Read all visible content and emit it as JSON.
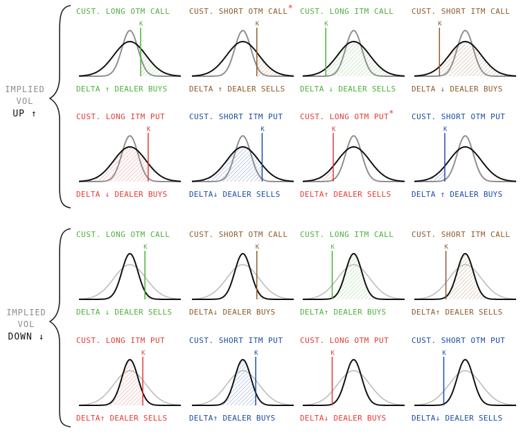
{
  "colors": {
    "call_long": "#4caf3a",
    "call_short": "#8d5a2b",
    "put_long": "#e53935",
    "put_short": "#1d4aa8",
    "asterisk": "#e53935"
  },
  "sections": [
    {
      "label": [
        "IMPLIED",
        "VOL",
        "UP ↑"
      ],
      "mode": "up",
      "panels": [
        {
          "title": "CUST. LONG OTM CALL",
          "caption": "DELTA ↑  DEALER BUYS",
          "color_key": "call_long",
          "strike_x": 0.6,
          "shade": "right",
          "star": ""
        },
        {
          "title": "CUST. SHORT OTM CALL",
          "caption": "DELTA ↑  DEALER SELLS",
          "color_key": "call_short",
          "strike_x": 0.63,
          "shade": "right",
          "star": "*"
        },
        {
          "title": "CUST. LONG ITM CALL",
          "caption": "DELTA ↓  DEALER SELLS",
          "color_key": "call_long",
          "strike_x": 0.24,
          "shade": "right",
          "star": ""
        },
        {
          "title": "CUST. SHORT ITM CALL",
          "caption": "DELTA ↓  DEALER BUYS",
          "color_key": "call_short",
          "strike_x": 0.26,
          "shade": "right",
          "star": ""
        },
        {
          "title": "CUST. LONG ITM PUT",
          "caption": "DELTA ↓  DEALER BUYS",
          "color_key": "put_long",
          "strike_x": 0.67,
          "shade": "left",
          "star": ""
        },
        {
          "title": "CUST. SHORT ITM PUT",
          "caption": "DELTA↓  DEALER SELLS",
          "color_key": "put_short",
          "strike_x": 0.68,
          "shade": "left",
          "star": ""
        },
        {
          "title": "CUST. LONG OTM PUT",
          "caption": "DELTA↑  DEALER SELLS",
          "color_key": "put_long",
          "strike_x": 0.31,
          "shade": "left",
          "star": "*"
        },
        {
          "title": "CUST. SHORT OTM PUT",
          "caption": "DELTA ↑  DEALER BUYS",
          "color_key": "put_short",
          "strike_x": 0.31,
          "shade": "left",
          "star": ""
        }
      ]
    },
    {
      "label": [
        "IMPLIED",
        "VOL",
        "DOWN ↓"
      ],
      "mode": "down",
      "panels": [
        {
          "title": "CUST. LONG OTM CALL",
          "caption": "DELTA ↓  DEALER SELLS",
          "color_key": "call_long",
          "strike_x": 0.64,
          "shade": "right",
          "star": ""
        },
        {
          "title": "CUST. SHORT OTM CALL",
          "caption": "DELTA↓  DEALER BUYS",
          "color_key": "call_short",
          "strike_x": 0.63,
          "shade": "right",
          "star": ""
        },
        {
          "title": "CUST. LONG ITM CALL",
          "caption": "DELTA↑  DEALER BUYS",
          "color_key": "call_long",
          "strike_x": 0.3,
          "shade": "right",
          "star": ""
        },
        {
          "title": "CUST. SHORT ITM CALL",
          "caption": "DELTA↑  DEALER SELLS",
          "color_key": "call_short",
          "strike_x": 0.32,
          "shade": "right",
          "star": ""
        },
        {
          "title": "CUST. LONG ITM PUT",
          "caption": "DELTA↑  DEALER SELLS",
          "color_key": "put_long",
          "strike_x": 0.62,
          "shade": "left",
          "star": ""
        },
        {
          "title": "CUST. SHORT ITM PUT",
          "caption": "DELTA↑  DEALER BUYS",
          "color_key": "put_short",
          "strike_x": 0.62,
          "shade": "left",
          "star": ""
        },
        {
          "title": "CUST. LONG OTM PUT",
          "caption": "DELTA↓  DEALER BUYS",
          "color_key": "put_long",
          "strike_x": 0.3,
          "shade": "left",
          "star": ""
        },
        {
          "title": "CUST. SHORT OTM PUT",
          "caption": "DELTA↓  DEALER SELLS",
          "color_key": "put_short",
          "strike_x": 0.3,
          "shade": "left",
          "star": ""
        }
      ]
    }
  ],
  "strike_label": "K"
}
